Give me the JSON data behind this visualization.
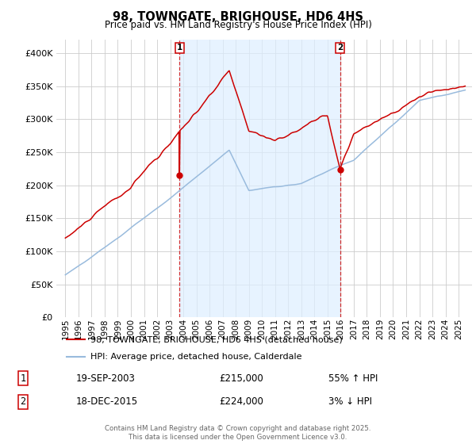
{
  "title": "98, TOWNGATE, BRIGHOUSE, HD6 4HS",
  "subtitle": "Price paid vs. HM Land Registry's House Price Index (HPI)",
  "legend_line1": "98, TOWNGATE, BRIGHOUSE, HD6 4HS (detached house)",
  "legend_line2": "HPI: Average price, detached house, Calderdale",
  "annotation1_label": "1",
  "annotation1_date": "19-SEP-2003",
  "annotation1_price": "£215,000",
  "annotation1_hpi": "55% ↑ HPI",
  "annotation2_label": "2",
  "annotation2_date": "18-DEC-2015",
  "annotation2_price": "£224,000",
  "annotation2_hpi": "3% ↓ HPI",
  "copyright": "Contains HM Land Registry data © Crown copyright and database right 2025.\nThis data is licensed under the Open Government Licence v3.0.",
  "ylim": [
    0,
    420000
  ],
  "yticks": [
    0,
    50000,
    100000,
    150000,
    200000,
    250000,
    300000,
    350000,
    400000
  ],
  "bg_color": "#ffffff",
  "plot_bg_color": "#ffffff",
  "grid_color": "#cccccc",
  "red_color": "#cc0000",
  "blue_color": "#99bbdd",
  "shade_color": "#ddeeff",
  "marker1_x": 2003.72,
  "marker1_y": 215000,
  "marker2_x": 2015.96,
  "marker2_y": 224000,
  "xlim_left": 1994.3,
  "xlim_right": 2026.0
}
